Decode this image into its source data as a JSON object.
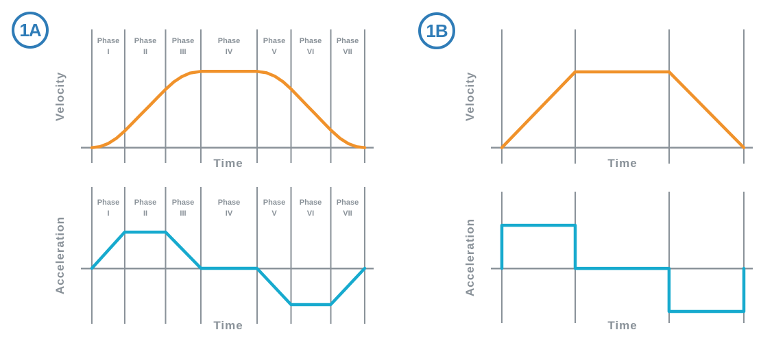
{
  "colors": {
    "background": "#FFFFFF",
    "badge_blue": "#2F7CB7",
    "curve_orange": "#F0922B",
    "curve_cyan": "#17AACE",
    "grid_gray": "#8A9299",
    "label_gray": "#8A9299"
  },
  "figures": {
    "fig1a": {
      "badge": "1A"
    },
    "fig1b": {
      "badge": "1B"
    }
  },
  "chart_data": [
    {
      "id": "fig1a_velocity",
      "figure": "1A",
      "type": "line",
      "xlabel": "Time",
      "ylabel": "Velocity",
      "phase_word": "Phase",
      "phases": [
        "I",
        "II",
        "III",
        "IV",
        "V",
        "VI",
        "VII"
      ],
      "x_phase_boundaries": [
        0,
        0.12,
        0.27,
        0.4,
        0.605,
        0.73,
        0.875,
        1.0
      ],
      "xlim": [
        0,
        1
      ],
      "ylim": [
        -0.2,
        1.55
      ],
      "grid": "vertical-only",
      "legend": "none",
      "series": [
        {
          "name": "velocity",
          "color": "#F0922B",
          "points": [
            [
              0,
              0
            ],
            [
              0.03,
              0.014
            ],
            [
              0.06,
              0.055
            ],
            [
              0.09,
              0.123
            ],
            [
              0.12,
              0.218
            ],
            [
              0.15,
              0.327
            ],
            [
              0.18,
              0.436
            ],
            [
              0.21,
              0.545
            ],
            [
              0.24,
              0.655
            ],
            [
              0.27,
              0.764
            ],
            [
              0.3,
              0.861
            ],
            [
              0.33,
              0.932
            ],
            [
              0.36,
              0.978
            ],
            [
              0.4,
              1
            ],
            [
              0.45,
              1
            ],
            [
              0.5,
              1
            ],
            [
              0.55,
              1
            ],
            [
              0.605,
              1
            ],
            [
              0.64,
              0.982
            ],
            [
              0.67,
              0.937
            ],
            [
              0.7,
              0.866
            ],
            [
              0.73,
              0.769
            ],
            [
              0.76,
              0.658
            ],
            [
              0.79,
              0.547
            ],
            [
              0.82,
              0.436
            ],
            [
              0.845,
              0.344
            ],
            [
              0.875,
              0.233
            ],
            [
              0.91,
              0.12
            ],
            [
              0.94,
              0.053
            ],
            [
              0.97,
              0.013
            ],
            [
              1,
              0
            ]
          ]
        }
      ]
    },
    {
      "id": "fig1a_acceleration",
      "figure": "1A",
      "type": "line",
      "xlabel": "Time",
      "ylabel": "Acceleration",
      "phase_word": "Phase",
      "phases": [
        "I",
        "II",
        "III",
        "IV",
        "V",
        "VI",
        "VII"
      ],
      "x_phase_boundaries": [
        0,
        0.12,
        0.27,
        0.4,
        0.605,
        0.73,
        0.875,
        1.0
      ],
      "xlim": [
        0,
        1
      ],
      "ylim": [
        -1.53,
        2.25
      ],
      "grid": "vertical-only",
      "legend": "none",
      "series": [
        {
          "name": "acceleration",
          "color": "#17AACE",
          "points": [
            [
              0,
              0
            ],
            [
              0.12,
              1
            ],
            [
              0.27,
              1
            ],
            [
              0.4,
              0
            ],
            [
              0.605,
              0
            ],
            [
              0.73,
              -1
            ],
            [
              0.875,
              -1
            ],
            [
              1,
              0
            ]
          ]
        }
      ]
    },
    {
      "id": "fig1b_velocity",
      "figure": "1B",
      "type": "line",
      "xlabel": "Time",
      "ylabel": "Velocity",
      "x_phase_boundaries": [
        0,
        0.303,
        0.691,
        1.0
      ],
      "xlim": [
        0,
        1
      ],
      "ylim": [
        -0.21,
        1.56
      ],
      "grid": "vertical-only",
      "legend": "none",
      "series": [
        {
          "name": "velocity",
          "color": "#F0922B",
          "points": [
            [
              0,
              0
            ],
            [
              0.303,
              1
            ],
            [
              0.691,
              1
            ],
            [
              1,
              0
            ]
          ]
        }
      ]
    },
    {
      "id": "fig1b_acceleration",
      "figure": "1B",
      "type": "line",
      "xlabel": "Time",
      "ylabel": "Acceleration",
      "x_phase_boundaries": [
        0,
        0.303,
        0.691,
        1.0
      ],
      "xlim": [
        0,
        1
      ],
      "ylim": [
        -1.27,
        1.78
      ],
      "grid": "vertical-only",
      "legend": "none",
      "series": [
        {
          "name": "acceleration",
          "color": "#17AACE",
          "points": [
            [
              0,
              0
            ],
            [
              0,
              1
            ],
            [
              0.303,
              1
            ],
            [
              0.303,
              0
            ],
            [
              0.691,
              0
            ],
            [
              0.691,
              -1
            ],
            [
              1,
              -1
            ],
            [
              1,
              0
            ]
          ]
        }
      ]
    }
  ]
}
